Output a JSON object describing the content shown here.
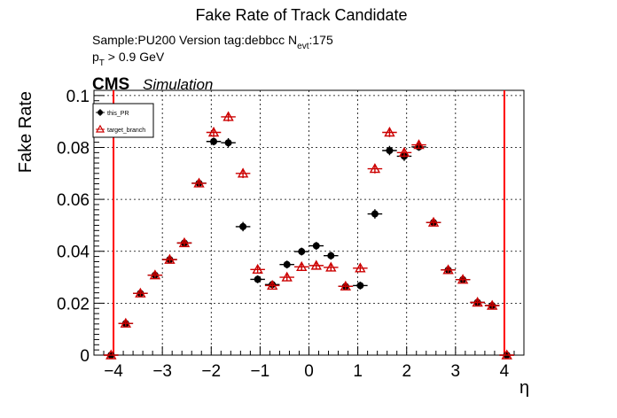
{
  "chart_data": {
    "type": "scatter",
    "title": "Fake Rate of Track Candidate",
    "info": {
      "sample_line": "Sample:PU200   Version tag:debbcc  N",
      "nevt_sub": "evt",
      "nevt_val": ":175",
      "pt_p": "p",
      "pt_sub": "T",
      "pt_rest": " > 0.9 GeV"
    },
    "cms_label": "CMS",
    "simulation_label": "Simulation",
    "xlabel": "η",
    "ylabel": "Fake Rate",
    "xlim": [
      -4.4,
      4.4
    ],
    "ylim": [
      0,
      0.102
    ],
    "xticks": [
      -4,
      -3,
      -2,
      -1,
      0,
      1,
      2,
      3,
      4
    ],
    "xtick_labels": [
      "−4",
      "−3",
      "−2",
      "−1",
      "0",
      "1",
      "2",
      "3",
      "4"
    ],
    "yticks": [
      0,
      0.02,
      0.04,
      0.06,
      0.08,
      0.1
    ],
    "ytick_labels": [
      "0",
      "0.02",
      "0.04",
      "0.06",
      "0.08",
      "0.1"
    ],
    "grid": true,
    "legend_position": "top-left",
    "vertical_lines": [
      -4.0,
      4.0
    ],
    "bin_half_width": 0.15,
    "series": [
      {
        "name": "this_PR",
        "color": "#000000",
        "marker": "filled-circle",
        "points": [
          {
            "x": -4.05,
            "y": 0.0,
            "err": 0.0
          },
          {
            "x": -3.75,
            "y": 0.0122,
            "err": 0.001
          },
          {
            "x": -3.45,
            "y": 0.0238,
            "err": 0.001
          },
          {
            "x": -3.15,
            "y": 0.0308,
            "err": 0.001
          },
          {
            "x": -2.85,
            "y": 0.0368,
            "err": 0.001
          },
          {
            "x": -2.55,
            "y": 0.0432,
            "err": 0.001
          },
          {
            "x": -2.25,
            "y": 0.0662,
            "err": 0.0015
          },
          {
            "x": -1.95,
            "y": 0.0823,
            "err": 0.0015
          },
          {
            "x": -1.65,
            "y": 0.0818,
            "err": 0.0018
          },
          {
            "x": -1.35,
            "y": 0.0495,
            "err": 0.0018
          },
          {
            "x": -1.05,
            "y": 0.0292,
            "err": 0.0015
          },
          {
            "x": -0.75,
            "y": 0.0272,
            "err": 0.0015
          },
          {
            "x": -0.45,
            "y": 0.0349,
            "err": 0.0015
          },
          {
            "x": -0.15,
            "y": 0.0399,
            "err": 0.0015
          },
          {
            "x": 0.15,
            "y": 0.0421,
            "err": 0.0015
          },
          {
            "x": 0.45,
            "y": 0.0383,
            "err": 0.0015
          },
          {
            "x": 0.75,
            "y": 0.0265,
            "err": 0.0015
          },
          {
            "x": 1.05,
            "y": 0.0268,
            "err": 0.0015
          },
          {
            "x": 1.35,
            "y": 0.0544,
            "err": 0.0018
          },
          {
            "x": 1.65,
            "y": 0.0788,
            "err": 0.0018
          },
          {
            "x": 1.95,
            "y": 0.0766,
            "err": 0.0018
          },
          {
            "x": 2.25,
            "y": 0.0802,
            "err": 0.0015
          },
          {
            "x": 2.55,
            "y": 0.0511,
            "err": 0.0012
          },
          {
            "x": 2.85,
            "y": 0.0328,
            "err": 0.001
          },
          {
            "x": 3.15,
            "y": 0.0291,
            "err": 0.001
          },
          {
            "x": 3.45,
            "y": 0.0203,
            "err": 0.001
          },
          {
            "x": 3.75,
            "y": 0.0191,
            "err": 0.001
          },
          {
            "x": 4.05,
            "y": 0.0,
            "err": 0.0
          }
        ]
      },
      {
        "name": "target_branch",
        "color": "#cc0000",
        "marker": "open-triangle",
        "points": [
          {
            "x": -4.05,
            "y": 0.0,
            "err": 0.0
          },
          {
            "x": -3.75,
            "y": 0.0122,
            "err": 0.001
          },
          {
            "x": -3.45,
            "y": 0.0238,
            "err": 0.001
          },
          {
            "x": -3.15,
            "y": 0.0308,
            "err": 0.001
          },
          {
            "x": -2.85,
            "y": 0.0368,
            "err": 0.001
          },
          {
            "x": -2.55,
            "y": 0.0432,
            "err": 0.001
          },
          {
            "x": -2.25,
            "y": 0.0662,
            "err": 0.0015
          },
          {
            "x": -1.95,
            "y": 0.0858,
            "err": 0.0018
          },
          {
            "x": -1.65,
            "y": 0.0918,
            "err": 0.0018
          },
          {
            "x": -1.35,
            "y": 0.07,
            "err": 0.0018
          },
          {
            "x": -1.05,
            "y": 0.033,
            "err": 0.0015
          },
          {
            "x": -0.75,
            "y": 0.0268,
            "err": 0.0015
          },
          {
            "x": -0.45,
            "y": 0.03,
            "err": 0.0015
          },
          {
            "x": -0.15,
            "y": 0.034,
            "err": 0.0015
          },
          {
            "x": 0.15,
            "y": 0.0345,
            "err": 0.0015
          },
          {
            "x": 0.45,
            "y": 0.0338,
            "err": 0.0015
          },
          {
            "x": 0.75,
            "y": 0.0265,
            "err": 0.0015
          },
          {
            "x": 1.05,
            "y": 0.0335,
            "err": 0.0015
          },
          {
            "x": 1.35,
            "y": 0.0718,
            "err": 0.0018
          },
          {
            "x": 1.65,
            "y": 0.0858,
            "err": 0.0018
          },
          {
            "x": 1.95,
            "y": 0.078,
            "err": 0.0018
          },
          {
            "x": 2.25,
            "y": 0.081,
            "err": 0.0015
          },
          {
            "x": 2.55,
            "y": 0.0511,
            "err": 0.0012
          },
          {
            "x": 2.85,
            "y": 0.0328,
            "err": 0.001
          },
          {
            "x": 3.15,
            "y": 0.0291,
            "err": 0.001
          },
          {
            "x": 3.45,
            "y": 0.0203,
            "err": 0.001
          },
          {
            "x": 3.75,
            "y": 0.0191,
            "err": 0.001
          },
          {
            "x": 4.05,
            "y": 0.0,
            "err": 0.0
          }
        ]
      }
    ]
  }
}
